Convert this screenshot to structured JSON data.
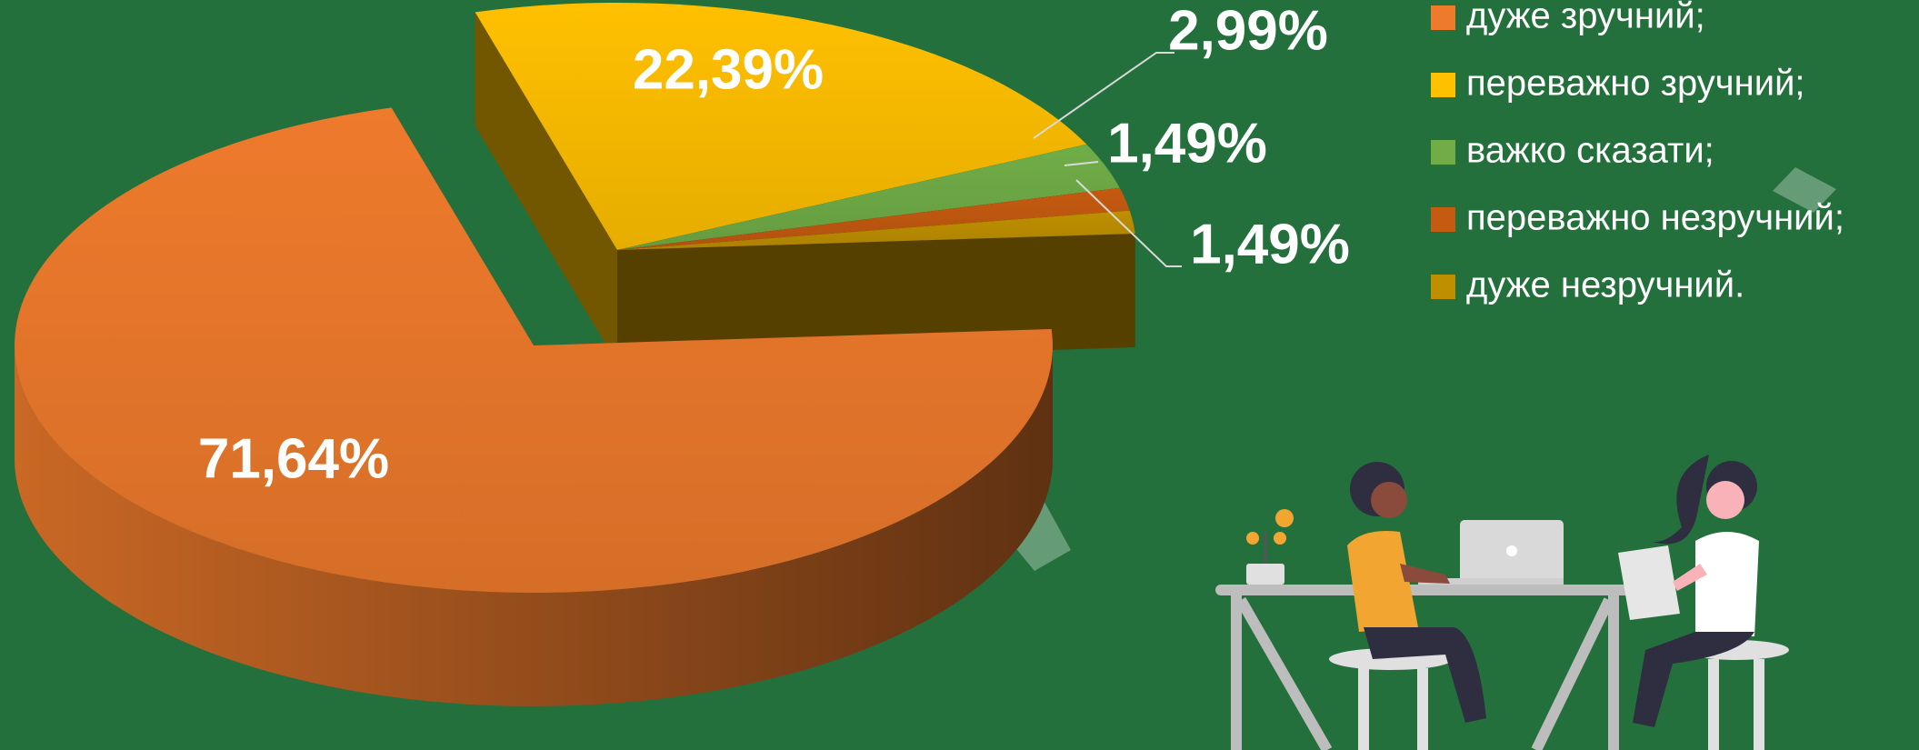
{
  "chart_data": {
    "type": "pie",
    "categories": [
      "дуже зручний;",
      "переважно зручний;",
      "важко сказати;",
      "переважно незручний;",
      "дуже незручний."
    ],
    "values": [
      71.64,
      22.39,
      2.99,
      1.49,
      1.49
    ],
    "value_labels": [
      "71,64%",
      "22,39%",
      "2,99%",
      "1,49%",
      "1,49%"
    ],
    "colors": [
      "#ee7a2c",
      "#ffc000",
      "#70ad47",
      "#c55a11",
      "#bf8f00"
    ],
    "legend": "right"
  }
}
